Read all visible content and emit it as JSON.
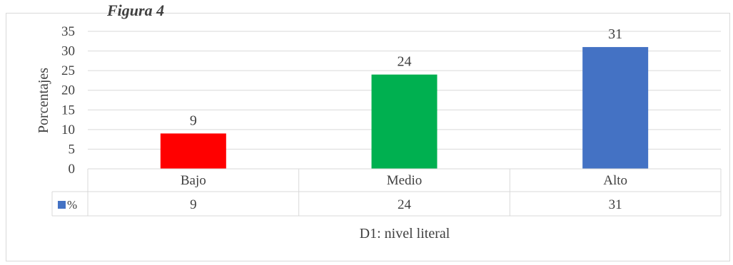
{
  "header_fragment": "Figura 4",
  "chart_data": {
    "type": "bar",
    "categories": [
      "Bajo",
      "Medio",
      "Alto"
    ],
    "series": [
      {
        "name": "%",
        "values": [
          9,
          24,
          31
        ],
        "color": "#4472C4"
      }
    ],
    "bar_colors": [
      "#FF0000",
      "#00B050",
      "#4472C4"
    ],
    "data_labels": [
      9,
      24,
      31
    ],
    "ylabel": "Porcentajes",
    "xlabel": "D1: nivel literal",
    "ylim": [
      0,
      35
    ],
    "yticks": [
      0,
      5,
      10,
      15,
      20,
      25,
      30,
      35
    ],
    "gridlines": true,
    "data_table": true
  }
}
